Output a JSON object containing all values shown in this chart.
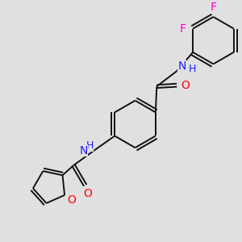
{
  "background_color": "#e0e0e0",
  "bond_color": "#111111",
  "atom_colors": {
    "N": "#2020ff",
    "O": "#ff0000",
    "F": "#ff00cc",
    "H": "#2020ff"
  },
  "figsize": [
    3.0,
    3.0
  ],
  "dpi": 100,
  "xlim": [
    0,
    10
  ],
  "ylim": [
    0,
    10
  ]
}
